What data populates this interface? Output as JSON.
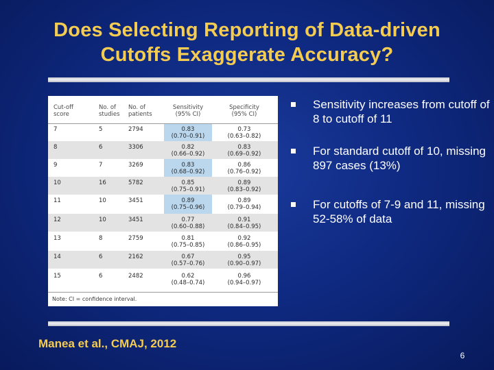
{
  "slide": {
    "title_line1": "Does Selecting Reporting of Data-driven",
    "title_line2": "Cutoffs Exaggerate Accuracy?",
    "citation": "Manea et al., CMAJ, 2012",
    "page_number": "6",
    "colors": {
      "title": "#f5cc52",
      "background": "#0f2a82",
      "highlight": "#bad7ee"
    }
  },
  "table": {
    "headers": {
      "cutoff_1": "Cut-off",
      "cutoff_2": "score",
      "studies_1": "No. of",
      "studies_2": "studies",
      "patients_1": "No. of",
      "patients_2": "patients",
      "sens_1": "Sensitivity",
      "sens_2": "(95% CI)",
      "spec_1": "Specificity",
      "spec_2": "(95% CI)"
    },
    "rows": [
      {
        "cutoff": "7",
        "studies": "5",
        "patients": "2794",
        "sens": "0.83",
        "sens_ci": "(0.70–0.91)",
        "spec": "0.73",
        "spec_ci": "(0.63–0.82)"
      },
      {
        "cutoff": "8",
        "studies": "6",
        "patients": "3306",
        "sens": "0.82",
        "sens_ci": "(0.66–0.92)",
        "spec": "0.83",
        "spec_ci": "(0.69–0.92)"
      },
      {
        "cutoff": "9",
        "studies": "7",
        "patients": "3269",
        "sens": "0.83",
        "sens_ci": "(0.68–0.92)",
        "spec": "0.86",
        "spec_ci": "(0.76–0.92)"
      },
      {
        "cutoff": "10",
        "studies": "16",
        "patients": "5782",
        "sens": "0.85",
        "sens_ci": "(0.75–0.91)",
        "spec": "0.89",
        "spec_ci": "(0.83–0.92)"
      },
      {
        "cutoff": "11",
        "studies": "10",
        "patients": "3451",
        "sens": "0.89",
        "sens_ci": "(0.75–0.96)",
        "spec": "0.89",
        "spec_ci": "(0.79–0.94)"
      },
      {
        "cutoff": "12",
        "studies": "10",
        "patients": "3451",
        "sens": "0.77",
        "sens_ci": "(0.60–0.88)",
        "spec": "0.91",
        "spec_ci": "(0.84–0.95)"
      },
      {
        "cutoff": "13",
        "studies": "8",
        "patients": "2759",
        "sens": "0.81",
        "sens_ci": "(0.75–0.85)",
        "spec": "0.92",
        "spec_ci": "(0.86–0.95)"
      },
      {
        "cutoff": "14",
        "studies": "6",
        "patients": "2162",
        "sens": "0.67",
        "sens_ci": "(0.57–0.76)",
        "spec": "0.95",
        "spec_ci": "(0.90–0.97)"
      },
      {
        "cutoff": "15",
        "studies": "6",
        "patients": "2482",
        "sens": "0.62",
        "sens_ci": "(0.48–0.74)",
        "spec": "0.96",
        "spec_ci": "(0.94–0.97)"
      }
    ],
    "note": "Note: CI = confidence interval."
  },
  "bullets": [
    {
      "text": "Sensitivity increases from cutoff of 8 to cutoff of 11"
    },
    {
      "text": "For standard cutoff of 10, missing 897 cases (13%)"
    },
    {
      "text": "For cutoffs of 7-9 and 11, missing 52-58% of data"
    }
  ]
}
